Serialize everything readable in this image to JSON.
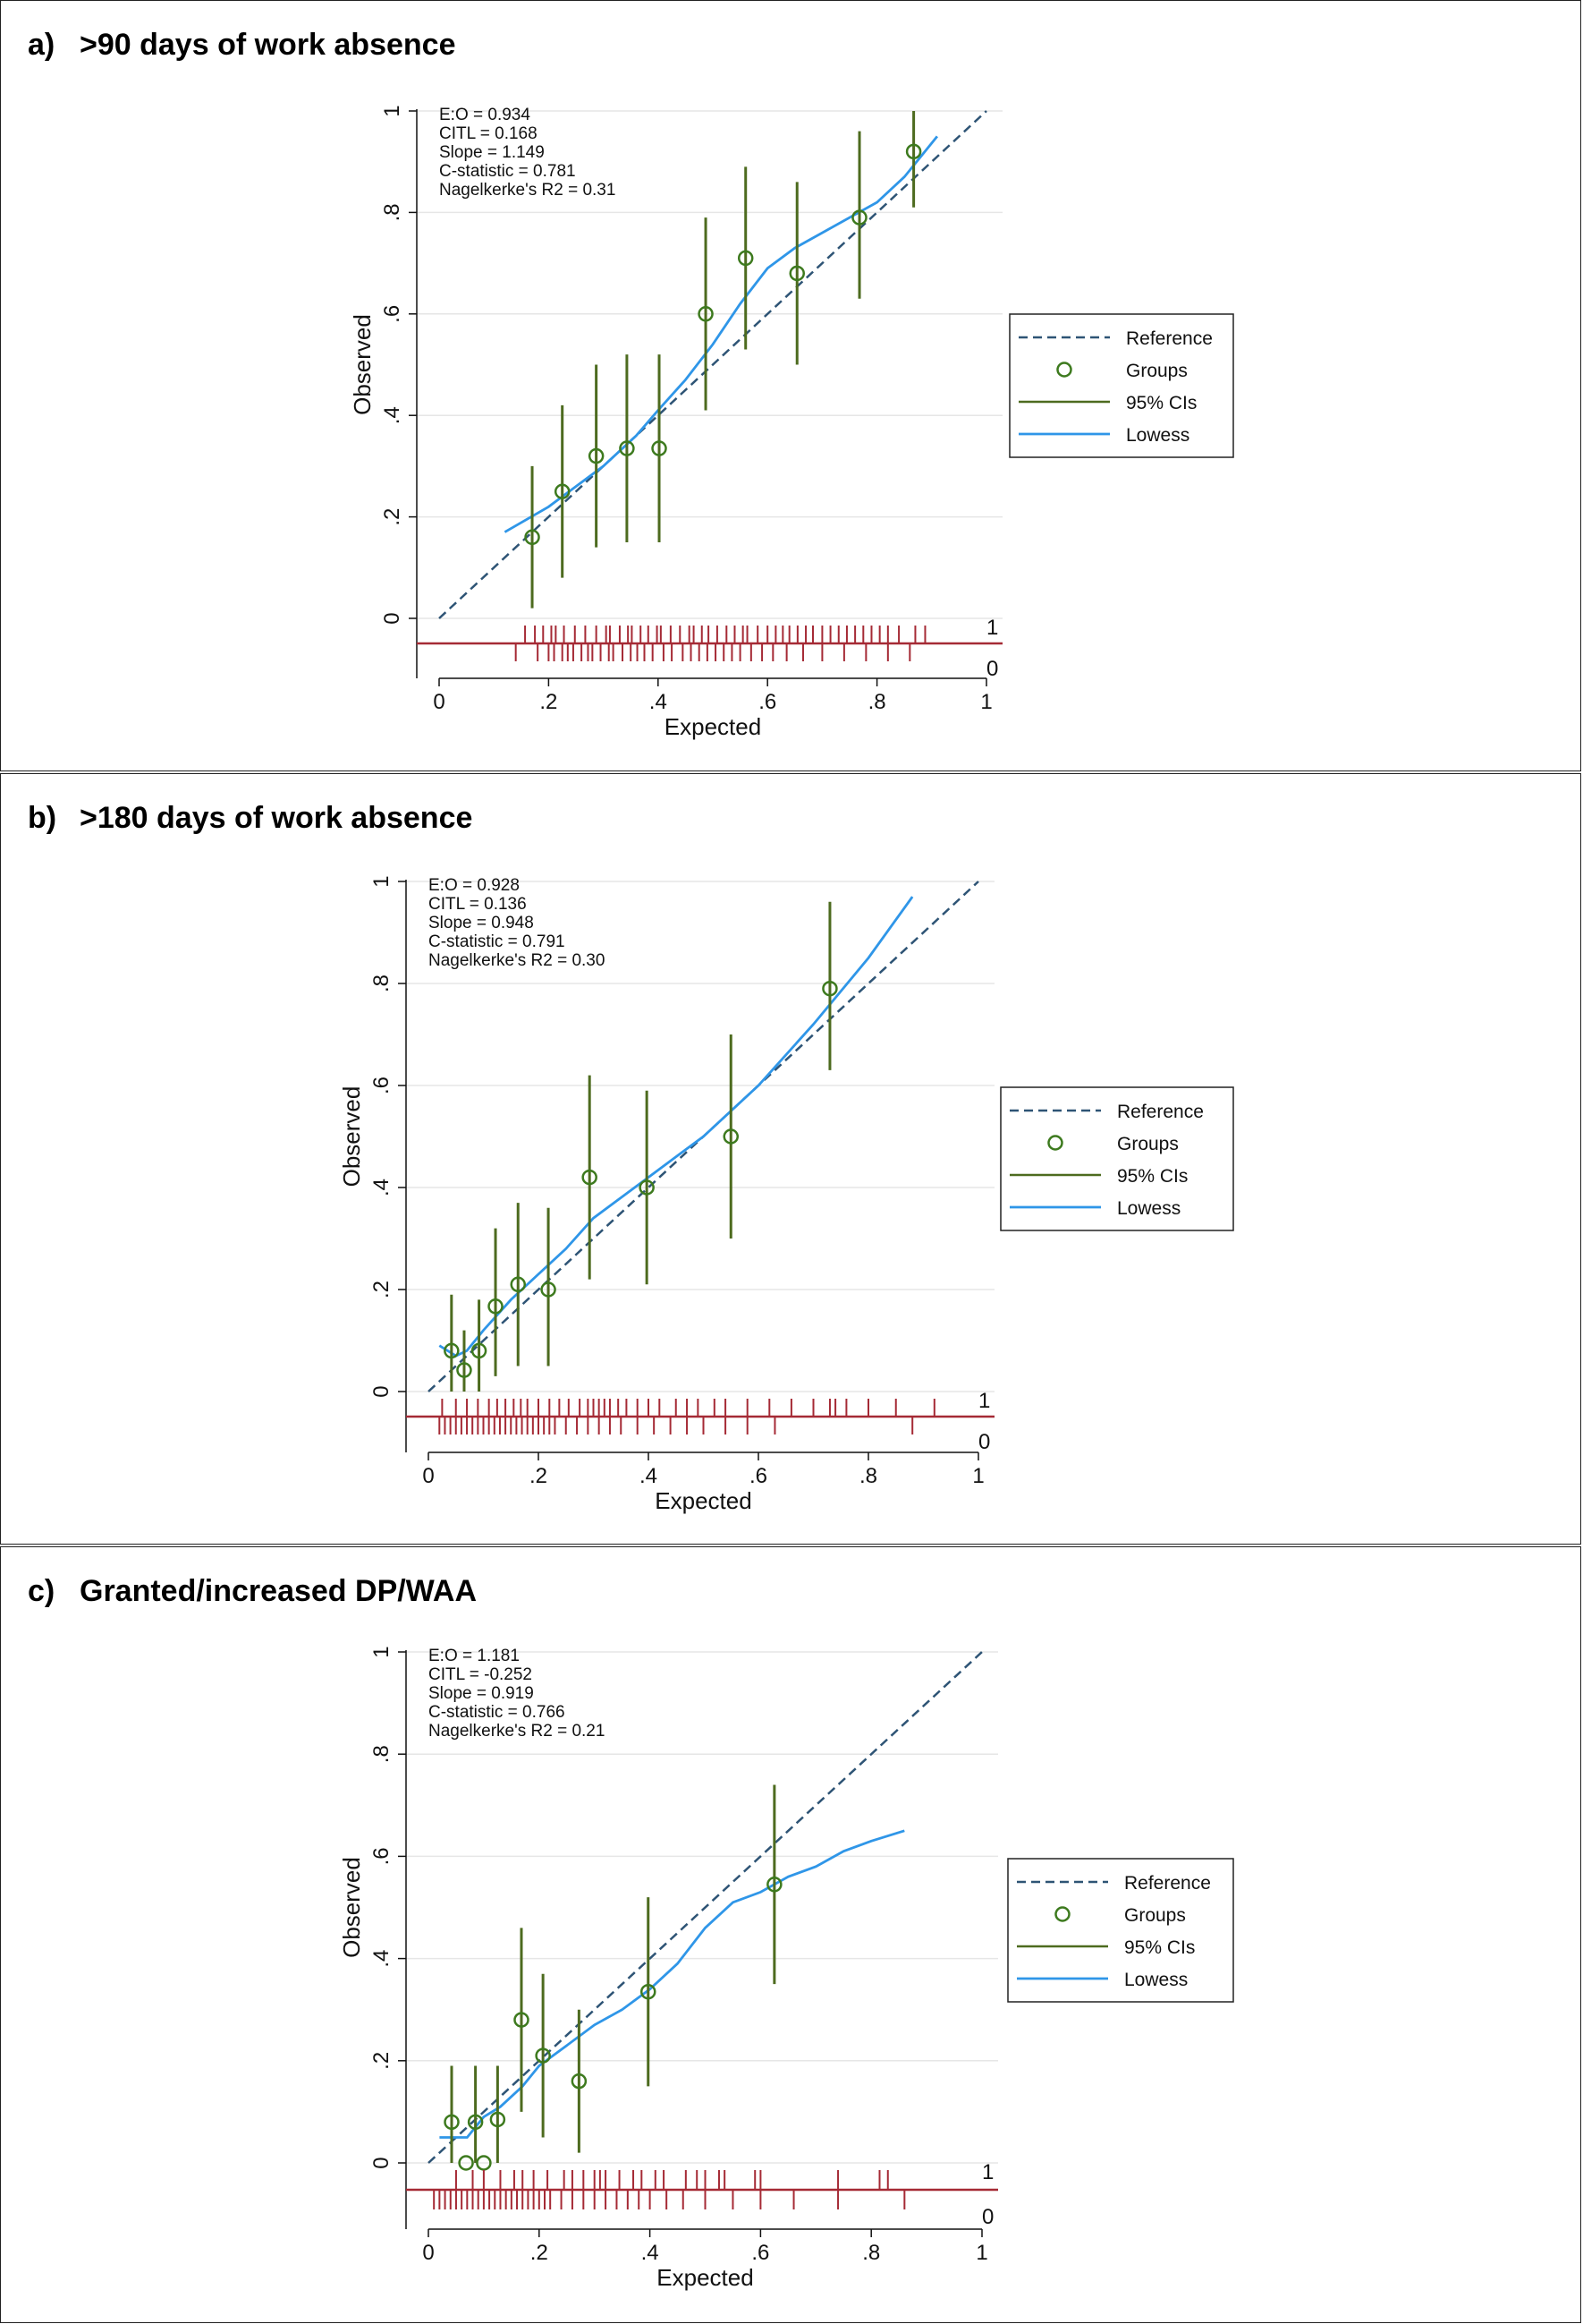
{
  "panels": [
    {
      "label": "a)",
      "title": ">90 days of work absence",
      "chart_data": {
        "type": "scatter",
        "xlabel": "Expected",
        "ylabel": "Observed",
        "xlim": [
          0,
          1
        ],
        "ylim": [
          0,
          1
        ],
        "x_ticks": [
          "0",
          ".2",
          ".4",
          ".6",
          ".8",
          "1"
        ],
        "y_ticks": [
          "0",
          ".2",
          ".4",
          ".6",
          ".8",
          "1"
        ],
        "stats": [
          "E:O = 0.934",
          "CITL = 0.168",
          "Slope = 1.149",
          "C-statistic = 0.781",
          "Nagelkerke's R2 = 0.31"
        ],
        "legend": [
          "Reference",
          "Groups",
          "95% CIs",
          "Lowess"
        ],
        "legend_position": "right",
        "rug_labels": [
          "1",
          "0"
        ],
        "series": [
          {
            "name": "Groups",
            "x": [
              0.17,
              0.225,
              0.287,
              0.343,
              0.402,
              0.487,
              0.56,
              0.654,
              0.768,
              0.867
            ],
            "y": [
              0.16,
              0.25,
              0.32,
              0.335,
              0.335,
              0.6,
              0.71,
              0.68,
              0.79,
              0.92
            ]
          },
          {
            "name": "95% CIs",
            "low": [
              0.02,
              0.08,
              0.14,
              0.15,
              0.15,
              0.41,
              0.53,
              0.5,
              0.63,
              0.81
            ],
            "high": [
              0.3,
              0.42,
              0.5,
              0.52,
              0.52,
              0.79,
              0.89,
              0.86,
              0.96,
              1.0
            ]
          },
          {
            "name": "Lowess",
            "x": [
              0.12,
              0.2,
              0.3,
              0.36,
              0.4,
              0.45,
              0.5,
              0.55,
              0.6,
              0.65,
              0.7,
              0.8,
              0.85,
              0.91
            ],
            "y": [
              0.17,
              0.22,
              0.3,
              0.36,
              0.41,
              0.47,
              0.54,
              0.62,
              0.69,
              0.73,
              0.76,
              0.82,
              0.87,
              0.95
            ]
          },
          {
            "name": "Reference",
            "x": [
              0,
              1
            ],
            "y": [
              0,
              1
            ]
          }
        ],
        "rug": {
          "events": [
            0.157,
            0.175,
            0.19,
            0.205,
            0.213,
            0.228,
            0.248,
            0.267,
            0.287,
            0.305,
            0.312,
            0.33,
            0.345,
            0.352,
            0.368,
            0.382,
            0.398,
            0.405,
            0.423,
            0.44,
            0.457,
            0.465,
            0.48,
            0.492,
            0.508,
            0.525,
            0.54,
            0.555,
            0.563,
            0.582,
            0.6,
            0.615,
            0.628,
            0.64,
            0.655,
            0.67,
            0.683,
            0.7,
            0.715,
            0.73,
            0.745,
            0.76,
            0.775,
            0.79,
            0.805,
            0.82,
            0.84,
            0.87,
            0.888
          ],
          "non_events": [
            0.14,
            0.18,
            0.2,
            0.21,
            0.225,
            0.235,
            0.245,
            0.26,
            0.272,
            0.28,
            0.295,
            0.31,
            0.318,
            0.335,
            0.35,
            0.362,
            0.375,
            0.39,
            0.41,
            0.425,
            0.445,
            0.46,
            0.475,
            0.49,
            0.505,
            0.52,
            0.535,
            0.55,
            0.57,
            0.59,
            0.61,
            0.635,
            0.665,
            0.7,
            0.74,
            0.78,
            0.82,
            0.86
          ]
        }
      }
    },
    {
      "label": "b)",
      "title": ">180 days of work absence",
      "chart_data": {
        "type": "scatter",
        "xlabel": "Expected",
        "ylabel": "Observed",
        "xlim": [
          0,
          1
        ],
        "ylim": [
          0,
          1
        ],
        "x_ticks": [
          "0",
          ".2",
          ".4",
          ".6",
          ".8",
          "1"
        ],
        "y_ticks": [
          "0",
          ".2",
          ".4",
          ".6",
          ".8",
          "1"
        ],
        "stats": [
          "E:O = 0.928",
          "CITL = 0.136",
          "Slope = 0.948",
          "C-statistic = 0.791",
          "Nagelkerke's R2 = 0.30"
        ],
        "legend": [
          "Reference",
          "Groups",
          "95% CIs",
          "Lowess"
        ],
        "legend_position": "right",
        "rug_labels": [
          "1",
          "0"
        ],
        "series": [
          {
            "name": "Groups",
            "x": [
              0.042,
              0.065,
              0.092,
              0.122,
              0.163,
              0.218,
              0.293,
              0.397,
              0.55,
              0.73
            ],
            "y": [
              0.08,
              0.042,
              0.08,
              0.167,
              0.21,
              0.2,
              0.42,
              0.4,
              0.5,
              0.79
            ]
          },
          {
            "name": "95% CIs",
            "low": [
              0.0,
              0.0,
              0.0,
              0.03,
              0.05,
              0.05,
              0.22,
              0.21,
              0.3,
              0.63
            ],
            "high": [
              0.19,
              0.12,
              0.18,
              0.32,
              0.37,
              0.36,
              0.62,
              0.59,
              0.7,
              0.96
            ]
          },
          {
            "name": "Reference",
            "x": [
              0,
              1
            ],
            "y": [
              0,
              1
            ]
          },
          {
            "name": "Lowess",
            "x": [
              0.02,
              0.05,
              0.07,
              0.1,
              0.15,
              0.2,
              0.25,
              0.3,
              0.35,
              0.4,
              0.5,
              0.6,
              0.7,
              0.8,
              0.88
            ],
            "y": [
              0.09,
              0.07,
              0.08,
              0.12,
              0.18,
              0.23,
              0.28,
              0.34,
              0.38,
              0.42,
              0.5,
              0.6,
              0.72,
              0.85,
              0.97
            ]
          }
        ],
        "rug": {
          "events": [
            0.025,
            0.05,
            0.07,
            0.09,
            0.11,
            0.125,
            0.14,
            0.155,
            0.168,
            0.18,
            0.2,
            0.22,
            0.238,
            0.255,
            0.275,
            0.29,
            0.3,
            0.31,
            0.32,
            0.33,
            0.345,
            0.36,
            0.38,
            0.4,
            0.42,
            0.45,
            0.47,
            0.49,
            0.52,
            0.54,
            0.58,
            0.62,
            0.66,
            0.7,
            0.73,
            0.74,
            0.76,
            0.8,
            0.85,
            0.92
          ],
          "non_events": [
            0.02,
            0.03,
            0.04,
            0.05,
            0.06,
            0.07,
            0.08,
            0.09,
            0.1,
            0.11,
            0.12,
            0.13,
            0.14,
            0.15,
            0.16,
            0.17,
            0.18,
            0.19,
            0.2,
            0.21,
            0.22,
            0.23,
            0.25,
            0.27,
            0.29,
            0.31,
            0.33,
            0.35,
            0.38,
            0.41,
            0.44,
            0.47,
            0.5,
            0.54,
            0.58,
            0.63,
            0.88
          ]
        }
      }
    },
    {
      "label": "c)",
      "title": "Granted/increased DP/WAA",
      "chart_data": {
        "type": "scatter",
        "xlabel": "Expected",
        "ylabel": "Observed",
        "xlim": [
          0,
          1
        ],
        "ylim": [
          0,
          1
        ],
        "x_ticks": [
          "0",
          ".2",
          ".4",
          ".6",
          ".8",
          "1"
        ],
        "y_ticks": [
          "0",
          ".2",
          ".4",
          ".6",
          ".8",
          "1"
        ],
        "stats": [
          "E:O = 1.181",
          "CITL = -0.252",
          "Slope = 0.919",
          "C-statistic = 0.766",
          "Nagelkerke's R2 = 0.21"
        ],
        "legend": [
          "Reference",
          "Groups",
          "95% CIs",
          "Lowess"
        ],
        "legend_position": "right",
        "rug_labels": [
          "1",
          "0"
        ],
        "series": [
          {
            "name": "Groups",
            "x": [
              0.042,
              0.068,
              0.085,
              0.1,
              0.125,
              0.168,
              0.207,
              0.272,
              0.397,
              0.625
            ],
            "y": [
              0.08,
              0.0,
              0.08,
              0.0,
              0.085,
              0.28,
              0.21,
              0.16,
              0.335,
              0.545
            ]
          },
          {
            "name": "95% CIs",
            "low": [
              0.0,
              null,
              0.0,
              null,
              0.0,
              0.1,
              0.05,
              0.02,
              0.15,
              0.35
            ],
            "high": [
              0.19,
              null,
              0.19,
              null,
              0.19,
              0.46,
              0.37,
              0.3,
              0.52,
              0.74
            ]
          },
          {
            "name": "Reference",
            "x": [
              0,
              1
            ],
            "y": [
              0,
              1
            ]
          },
          {
            "name": "Lowess",
            "x": [
              0.02,
              0.05,
              0.07,
              0.1,
              0.13,
              0.17,
              0.2,
              0.25,
              0.3,
              0.35,
              0.4,
              0.45,
              0.5,
              0.55,
              0.6,
              0.65,
              0.7,
              0.75,
              0.8,
              0.86
            ],
            "y": [
              0.05,
              0.05,
              0.05,
              0.09,
              0.11,
              0.15,
              0.19,
              0.23,
              0.27,
              0.3,
              0.34,
              0.39,
              0.46,
              0.51,
              0.53,
              0.56,
              0.58,
              0.61,
              0.63,
              0.65
            ]
          }
        ],
        "rug": {
          "events": [
            0.05,
            0.08,
            0.1,
            0.13,
            0.155,
            0.17,
            0.19,
            0.215,
            0.245,
            0.26,
            0.28,
            0.3,
            0.31,
            0.32,
            0.345,
            0.37,
            0.385,
            0.41,
            0.425,
            0.465,
            0.485,
            0.5,
            0.525,
            0.535,
            0.59,
            0.6,
            0.74,
            0.815,
            0.83
          ],
          "non_events": [
            0.01,
            0.02,
            0.03,
            0.04,
            0.05,
            0.06,
            0.07,
            0.08,
            0.09,
            0.1,
            0.11,
            0.12,
            0.13,
            0.14,
            0.15,
            0.16,
            0.17,
            0.18,
            0.19,
            0.2,
            0.21,
            0.22,
            0.24,
            0.26,
            0.28,
            0.3,
            0.32,
            0.34,
            0.36,
            0.38,
            0.4,
            0.43,
            0.46,
            0.5,
            0.55,
            0.6,
            0.66,
            0.74,
            0.86
          ]
        }
      }
    }
  ],
  "colors": {
    "reference": "#2e5475",
    "groups": "#3d7a1e",
    "ci": "#4d6b1f",
    "lowess": "#2f96e8",
    "rug": "#a52a35",
    "grid": "#e6e6e6",
    "axis": "#111111"
  }
}
